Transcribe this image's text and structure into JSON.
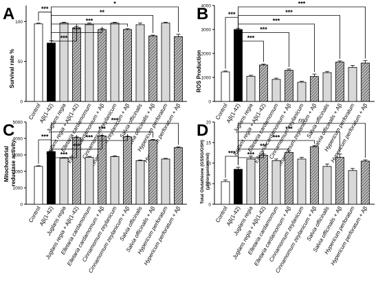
{
  "figure": {
    "categories": [
      "Control",
      "Aβ(1-42)",
      "Juglans regia",
      "Juglans regia + Aβ(1-42)",
      "Elletaria cardamomum",
      "Elletaria cardamomum + Aβ",
      "Cinnamomum zeylanicum",
      "Cinnamomum zeylanicum + Aβ",
      "Salvia officinalis",
      "Salvia officinalis + Aβ",
      "Hypericum perforatum",
      "Hypericum perforatum + Aβ"
    ],
    "category_styles": [
      "white",
      "black",
      "light-gray",
      "hatched",
      "light-gray",
      "hatched",
      "light-gray",
      "hatched",
      "light-gray",
      "hatched",
      "light-gray",
      "hatched"
    ],
    "colors": {
      "bar_edge": "#000000",
      "white": "#ffffff",
      "black": "#000000",
      "light_gray": "#d8d8d8",
      "hatch_bg": "#bdbdbd",
      "hatch_line": "#333333"
    }
  },
  "chart_data": [
    {
      "id": "A",
      "type": "bar",
      "panel_label": "A",
      "ylabel": "Survival rate %",
      "ylim": [
        0,
        120
      ],
      "yticks": [
        0,
        50,
        100
      ],
      "categories": [
        "Control",
        "Aβ(1-42)",
        "Juglans regia",
        "Juglans regia + Aβ(1-42)",
        "Elletaria cardamomum",
        "Elletaria cardamomum + Aβ",
        "Cinnamomum zeylanicum",
        "Cinnamomum zeylanicum + Aβ",
        "Salvia officinalis",
        "Salvia officinalis + Aβ",
        "Hypericum perforatum",
        "Hypericum perforatum + Aβ"
      ],
      "values": [
        97,
        73,
        98,
        92,
        96,
        90,
        98,
        90,
        96,
        82,
        98,
        81
      ],
      "errors": [
        1,
        3,
        1,
        2,
        2,
        1,
        1,
        1,
        2,
        1,
        1,
        3
      ],
      "brackets": [
        {
          "from": 0,
          "to": 1,
          "label": "***"
        },
        {
          "from": 1,
          "to": 3,
          "label": "***"
        },
        {
          "from": 1,
          "to": 5,
          "label": "***"
        },
        {
          "from": 1,
          "to": 7,
          "label": "***"
        },
        {
          "from": 1,
          "to": 9,
          "label": "**"
        },
        {
          "from": 1,
          "to": 11,
          "label": "*"
        }
      ]
    },
    {
      "id": "B",
      "type": "bar",
      "panel_label": "B",
      "ylabel": "ROS Production",
      "ylim": [
        0,
        4000
      ],
      "yticks": [
        0,
        1000,
        2000,
        3000,
        4000
      ],
      "categories": [
        "Control",
        "Aβ(1-42)",
        "Juglans regia",
        "Juglans regia + Aβ(1-42)",
        "Elletaria cardamomum",
        "Elletaria cardamomum + Aβ",
        "Cinnamomum zeylanicum",
        "Cinnamomum zeylanicum + Aβ",
        "Salvia officinalis",
        "Salvia officinalis + Aβ",
        "Hypericum perforatum",
        "Hypericum perforatum + Aβ"
      ],
      "values": [
        1230,
        3000,
        1050,
        1520,
        920,
        1300,
        800,
        1040,
        1200,
        1640,
        1420,
        1600
      ],
      "errors": [
        40,
        50,
        40,
        40,
        50,
        50,
        40,
        100,
        50,
        50,
        80,
        100
      ],
      "brackets": [
        {
          "from": 0,
          "to": 1,
          "label": "***"
        },
        {
          "from": 1,
          "to": 3,
          "label": "***"
        },
        {
          "from": 1,
          "to": 5,
          "label": "***"
        },
        {
          "from": 1,
          "to": 7,
          "label": "***"
        },
        {
          "from": 1,
          "to": 9,
          "label": "***"
        },
        {
          "from": 1,
          "to": 11,
          "label": "***"
        }
      ]
    },
    {
      "id": "C",
      "type": "bar",
      "panel_label": "C",
      "ylabel": "Mitochondrial reductase activity",
      "ylim": [
        0,
        5000
      ],
      "yticks": [
        0,
        1000,
        2000,
        3000,
        4000,
        5000
      ],
      "categories": [
        "Control",
        "Aβ(1-42)",
        "Juglans regia",
        "Juglans regia + Aβ(1-42)",
        "Elletaria cardamomum",
        "Elletaria cardamomum + Aβ",
        "Cinnamomum zeylanicum",
        "Cinnamomum zeylanicum + Aβ",
        "Salvia officinalis",
        "Salvia officinalis + Aβ",
        "Hypericum perforatum",
        "Hypericum perforatum + Aβ"
      ],
      "values": [
        2300,
        3200,
        2800,
        4050,
        2850,
        4150,
        2900,
        4100,
        2650,
        3900,
        2750,
        3450
      ],
      "errors": [
        40,
        50,
        40,
        40,
        60,
        40,
        40,
        40,
        40,
        40,
        40,
        40
      ],
      "brackets": [
        {
          "from": 0,
          "to": 1,
          "label": "***"
        },
        {
          "from": 1,
          "to": 3,
          "label": "***"
        },
        {
          "from": 1,
          "to": 5,
          "label": "***"
        },
        {
          "from": 1,
          "to": 7,
          "label": "***"
        },
        {
          "from": 1,
          "to": 9,
          "label": "***"
        },
        {
          "from": 1,
          "to": 11,
          "label": "***"
        }
      ]
    },
    {
      "id": "D",
      "type": "bar",
      "panel_label": "D",
      "ylabel": "Total Glutathione (GSSG/GSH) (μM/organism/ml)",
      "ylabel_lines": [
        "Total Glutathione (GSSG/GSH)",
        "(μM/organism/ml)"
      ],
      "ylim": [
        0,
        20
      ],
      "yticks": [
        0,
        5,
        10,
        15,
        20
      ],
      "categories": [
        "Control",
        "Aβ(1-42)",
        "Juglans regia",
        "Juglans regia + Aβ(1-42)",
        "Elletaria cardamomum",
        "Elletaria cardamomum + Aβ",
        "Cinnamomum zeylanicum",
        "Cinnamomum zeylanicum + Aβ",
        "Salvia officinalis",
        "Salvia officinalis + Aβ",
        "Hypericum perforatum",
        "Hypericum perforatum + Aβ"
      ],
      "values": [
        5.5,
        8.5,
        11.0,
        11.9,
        10.6,
        12.6,
        11.0,
        14.0,
        9.2,
        11.4,
        8.2,
        10.5
      ],
      "errors": [
        0.4,
        0.5,
        0.7,
        0.3,
        0.4,
        0.4,
        0.4,
        0.2,
        0.6,
        0.8,
        0.5,
        0.3
      ],
      "brackets": [
        {
          "from": 0,
          "to": 1,
          "label": "***"
        },
        {
          "from": 1,
          "to": 3,
          "label": "***"
        },
        {
          "from": 1,
          "to": 5,
          "label": "***"
        },
        {
          "from": 1,
          "to": 7,
          "label": "***"
        },
        {
          "from": 1,
          "to": 9,
          "label": "***"
        },
        {
          "from": 1,
          "to": 11,
          "label": "ns"
        }
      ]
    }
  ]
}
